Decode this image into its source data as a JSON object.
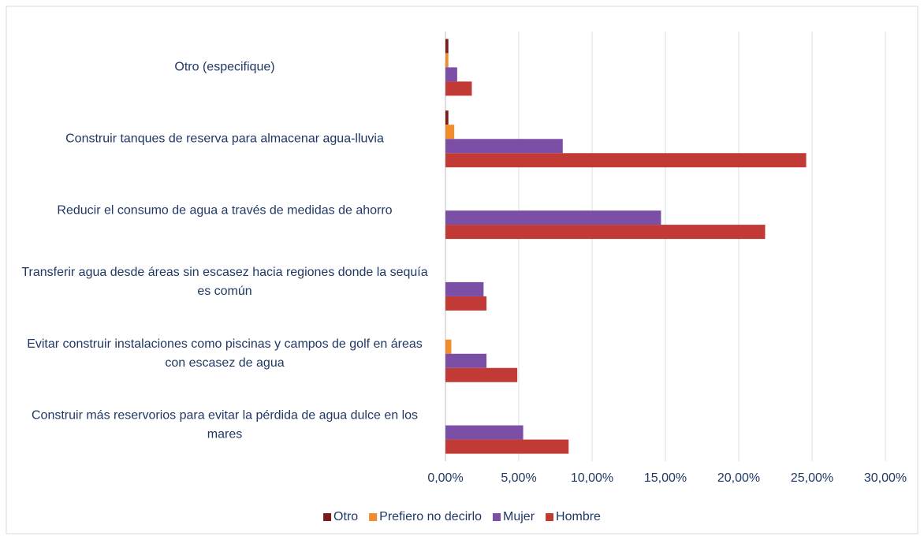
{
  "chart_data": {
    "type": "hbar",
    "categories": [
      "Otro (especifique)",
      "Construir tanques de reserva para almacenar agua-lluvia",
      "Reducir el consumo de agua a través de medidas de ahorro",
      "Transferir agua desde áreas sin escasez hacia regiones donde la sequía es común",
      "Evitar construir instalaciones como piscinas y campos de golf en áreas con escasez de agua",
      "Construir más reservorios para evitar la pérdida de agua dulce en los mares"
    ],
    "series": [
      {
        "name": "Otro",
        "color": "#7b1c1c",
        "values": [
          0.2,
          0.2,
          0,
          0,
          0,
          0
        ]
      },
      {
        "name": "Prefiero no decirlo",
        "color": "#f08c2a",
        "values": [
          0.2,
          0.6,
          0,
          0,
          0.4,
          0
        ]
      },
      {
        "name": "Mujer",
        "color": "#7b4fa6",
        "values": [
          0.8,
          8.0,
          14.7,
          2.6,
          2.8,
          5.3
        ]
      },
      {
        "name": "Hombre",
        "color": "#c23a35",
        "values": [
          1.8,
          24.6,
          21.8,
          2.8,
          4.9,
          8.4
        ]
      }
    ],
    "xlim": [
      0,
      30
    ],
    "xticks": [
      {
        "value": 0,
        "label": "0,00%"
      },
      {
        "value": 5,
        "label": "5,00%"
      },
      {
        "value": 10,
        "label": "10,00%"
      },
      {
        "value": 15,
        "label": "15,00%"
      },
      {
        "value": 20,
        "label": "20,00%"
      },
      {
        "value": 25,
        "label": "25,00%"
      },
      {
        "value": 30,
        "label": "30,00%"
      }
    ],
    "grid": true,
    "legend": "bottom"
  }
}
